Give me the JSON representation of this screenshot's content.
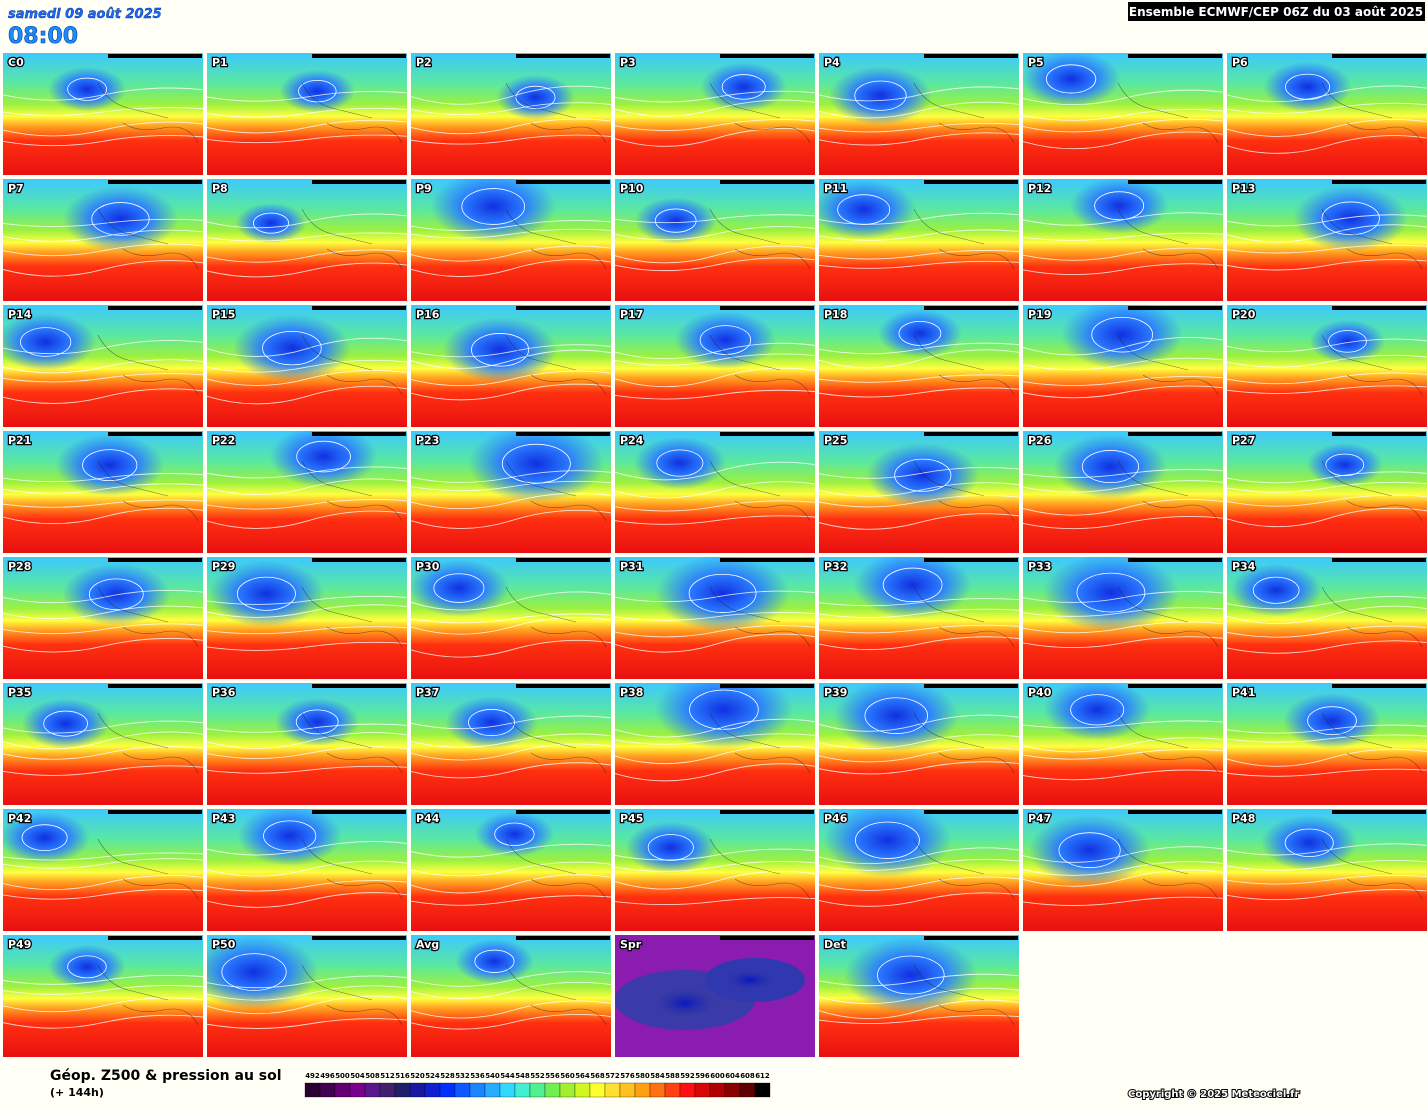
{
  "header": {
    "date": "samedi 09 août 2025",
    "time": "08:00",
    "title": "Ensemble ECMWF/CEP 06Z du 03 août 2025"
  },
  "panels": [
    "C0",
    "P1",
    "P2",
    "P3",
    "P4",
    "P5",
    "P6",
    "P7",
    "P8",
    "P9",
    "P10",
    "P11",
    "P12",
    "P13",
    "P14",
    "P15",
    "P16",
    "P17",
    "P18",
    "P19",
    "P20",
    "P21",
    "P22",
    "P23",
    "P24",
    "P25",
    "P26",
    "P27",
    "P28",
    "P29",
    "P30",
    "P31",
    "P32",
    "P33",
    "P34",
    "P35",
    "P36",
    "P37",
    "P38",
    "P39",
    "P40",
    "P41",
    "P42",
    "P43",
    "P44",
    "P45",
    "P46",
    "P47",
    "P48",
    "P49",
    "P50",
    "Avg",
    "Spr",
    "Det"
  ],
  "legend": {
    "title": "Géop. Z500 & pression au sol",
    "subtitle": "(+ 144h)",
    "scale": [
      492,
      496,
      500,
      504,
      508,
      512,
      516,
      520,
      524,
      528,
      532,
      536,
      540,
      544,
      548,
      552,
      556,
      560,
      564,
      568,
      572,
      576,
      580,
      584,
      588,
      592,
      596,
      600,
      604,
      608,
      612
    ]
  },
  "copyright": "Copyright © 2025 Meteociel.fr"
}
